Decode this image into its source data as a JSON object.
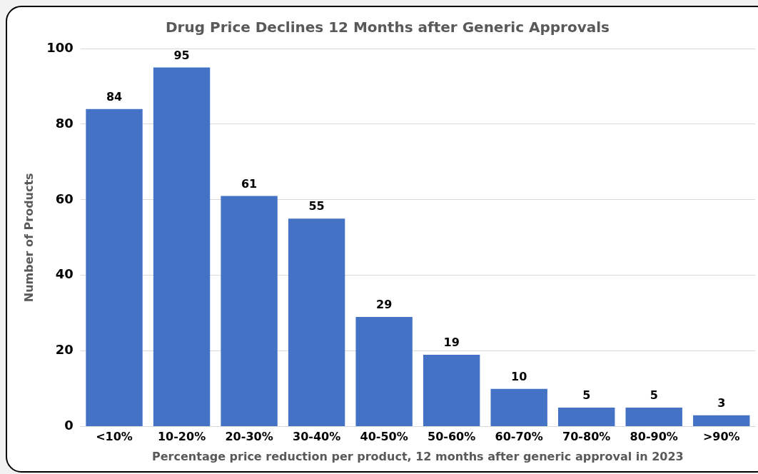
{
  "chart_data": {
    "type": "bar",
    "title": "Drug Price Declines 12 Months after Generic Approvals",
    "xlabel": "Percentage price reduction per product, 12 months after generic approval in 2023",
    "ylabel": "Number of Products",
    "categories": [
      "<10%",
      "10-20%",
      "20-30%",
      "30-40%",
      "40-50%",
      "50-60%",
      "60-70%",
      "70-80%",
      "80-90%",
      ">90%"
    ],
    "values": [
      84,
      95,
      61,
      55,
      29,
      19,
      10,
      5,
      5,
      3
    ],
    "color": "#4472c4",
    "ylim": [
      0,
      100
    ],
    "yticks": [
      0,
      20,
      40,
      60,
      80,
      100
    ],
    "grid": "y",
    "legend": false,
    "data_labels": true
  }
}
